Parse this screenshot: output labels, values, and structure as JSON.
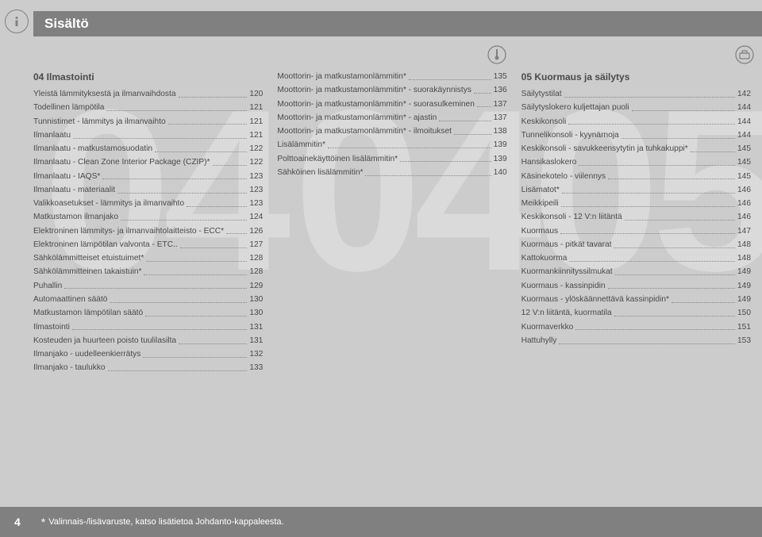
{
  "header_title": "Sisältö",
  "watermark_digits": [
    "04",
    "04",
    "05"
  ],
  "page_number": "4",
  "footnote_star": "*",
  "footnote_text": "Valinnais-/lisävaruste, katso lisätietoa Johdanto-kappaleesta.",
  "col1": {
    "heading": "04 Ilmastointi",
    "items": [
      {
        "label": "Yleistä lämmityksestä ja ilmanvaihdosta",
        "page": "120"
      },
      {
        "label": "Todellinen lämpötila",
        "page": "121"
      },
      {
        "label": "Tunnistimet - lämmitys ja ilmanvaihto",
        "page": "121"
      },
      {
        "label": "Ilmanlaatu",
        "page": "121"
      },
      {
        "label": "Ilmanlaatu - matkustamosuodatin",
        "page": "122"
      },
      {
        "label": "Ilmanlaatu - Clean Zone Interior Package (CZIP)*",
        "page": "122"
      },
      {
        "label": "Ilmanlaatu - IAQS*",
        "page": "123"
      },
      {
        "label": "Ilmanlaatu - materiaalit",
        "page": "123"
      },
      {
        "label": "Valikkoasetukset - lämmitys ja ilmanvaihto",
        "page": "123"
      },
      {
        "label": "Matkustamon ilmanjako",
        "page": "124"
      },
      {
        "label": "Elektroninen lämmitys- ja ilmanvaihtolaitteisto - ECC*",
        "page": "126"
      },
      {
        "label": "Elektroninen lämpötilan valvonta - ETC..",
        "page": "127"
      },
      {
        "label": "Sähkölämmitteiset etuistuimet*",
        "page": "128"
      },
      {
        "label": "Sähkölämmitteinen takaistuin*",
        "page": "128"
      },
      {
        "label": "Puhallin",
        "page": "129"
      },
      {
        "label": "Automaattinen säätö",
        "page": "130"
      },
      {
        "label": "Matkustamon lämpötilan säätö",
        "page": "130"
      },
      {
        "label": "Ilmastointi",
        "page": "131"
      },
      {
        "label": "Kosteuden ja huurteen poisto tuulilasilta",
        "page": "131"
      },
      {
        "label": "Ilmanjako - uudelleenkierrätys",
        "page": "132"
      },
      {
        "label": "Ilmanjako - taulukko",
        "page": "133"
      }
    ]
  },
  "col2": {
    "items": [
      {
        "label": "Moottorin- ja matkustamonlämmitin*",
        "page": "135"
      },
      {
        "label": "Moottorin- ja matkustamonlämmitin* - suorakäynnistys",
        "page": "136"
      },
      {
        "label": "Moottorin- ja matkustamonlämmitin* - suorasulkeminen",
        "page": "137"
      },
      {
        "label": "Moottorin- ja matkustamonlämmitin* - ajastin",
        "page": "137"
      },
      {
        "label": "Moottorin- ja matkustamonlämmitin* - ilmoitukset",
        "page": "138"
      },
      {
        "label": "Lisälämmitin*",
        "page": "139"
      },
      {
        "label": "Polttoainekäyttöinen lisälämmitin*",
        "page": "139"
      },
      {
        "label": "Sähköinen lisälämmitin*",
        "page": "140"
      }
    ]
  },
  "col3": {
    "heading": "05 Kuormaus ja säilytys",
    "items": [
      {
        "label": "Säilytystilat",
        "page": "142"
      },
      {
        "label": "Säilytyslokero kuljettajan puoli",
        "page": "144"
      },
      {
        "label": "Keskikonsoli",
        "page": "144"
      },
      {
        "label": "Tunnelikonsoli - kyynärnoja",
        "page": "144"
      },
      {
        "label": "Keskikonsoli - savukkeensytytin ja tuhkakuppi*",
        "page": "145"
      },
      {
        "label": "Hansikaslokero",
        "page": "145"
      },
      {
        "label": "Käsinekotelo - viilennys",
        "page": "145"
      },
      {
        "label": "Lisämatot*",
        "page": "146"
      },
      {
        "label": "Meikkipeili",
        "page": "146"
      },
      {
        "label": "Keskikonsoli - 12 V:n liitäntä",
        "page": "146"
      },
      {
        "label": "Kuormaus",
        "page": "147"
      },
      {
        "label": "Kuormaus - pitkät tavarat",
        "page": "148"
      },
      {
        "label": "Kattokuorma",
        "page": "148"
      },
      {
        "label": "Kuormankiinnityssilmukat",
        "page": "149"
      },
      {
        "label": "Kuormaus - kassinpidin",
        "page": "149"
      },
      {
        "label": "Kuormaus - ylöskäännettävä kassinpidin*",
        "page": "149"
      },
      {
        "label": "12 V:n liitäntä, kuormatila",
        "page": "150"
      },
      {
        "label": "Kuormaverkko",
        "page": "151"
      },
      {
        "label": "Hattuhylly",
        "page": "153"
      }
    ]
  }
}
